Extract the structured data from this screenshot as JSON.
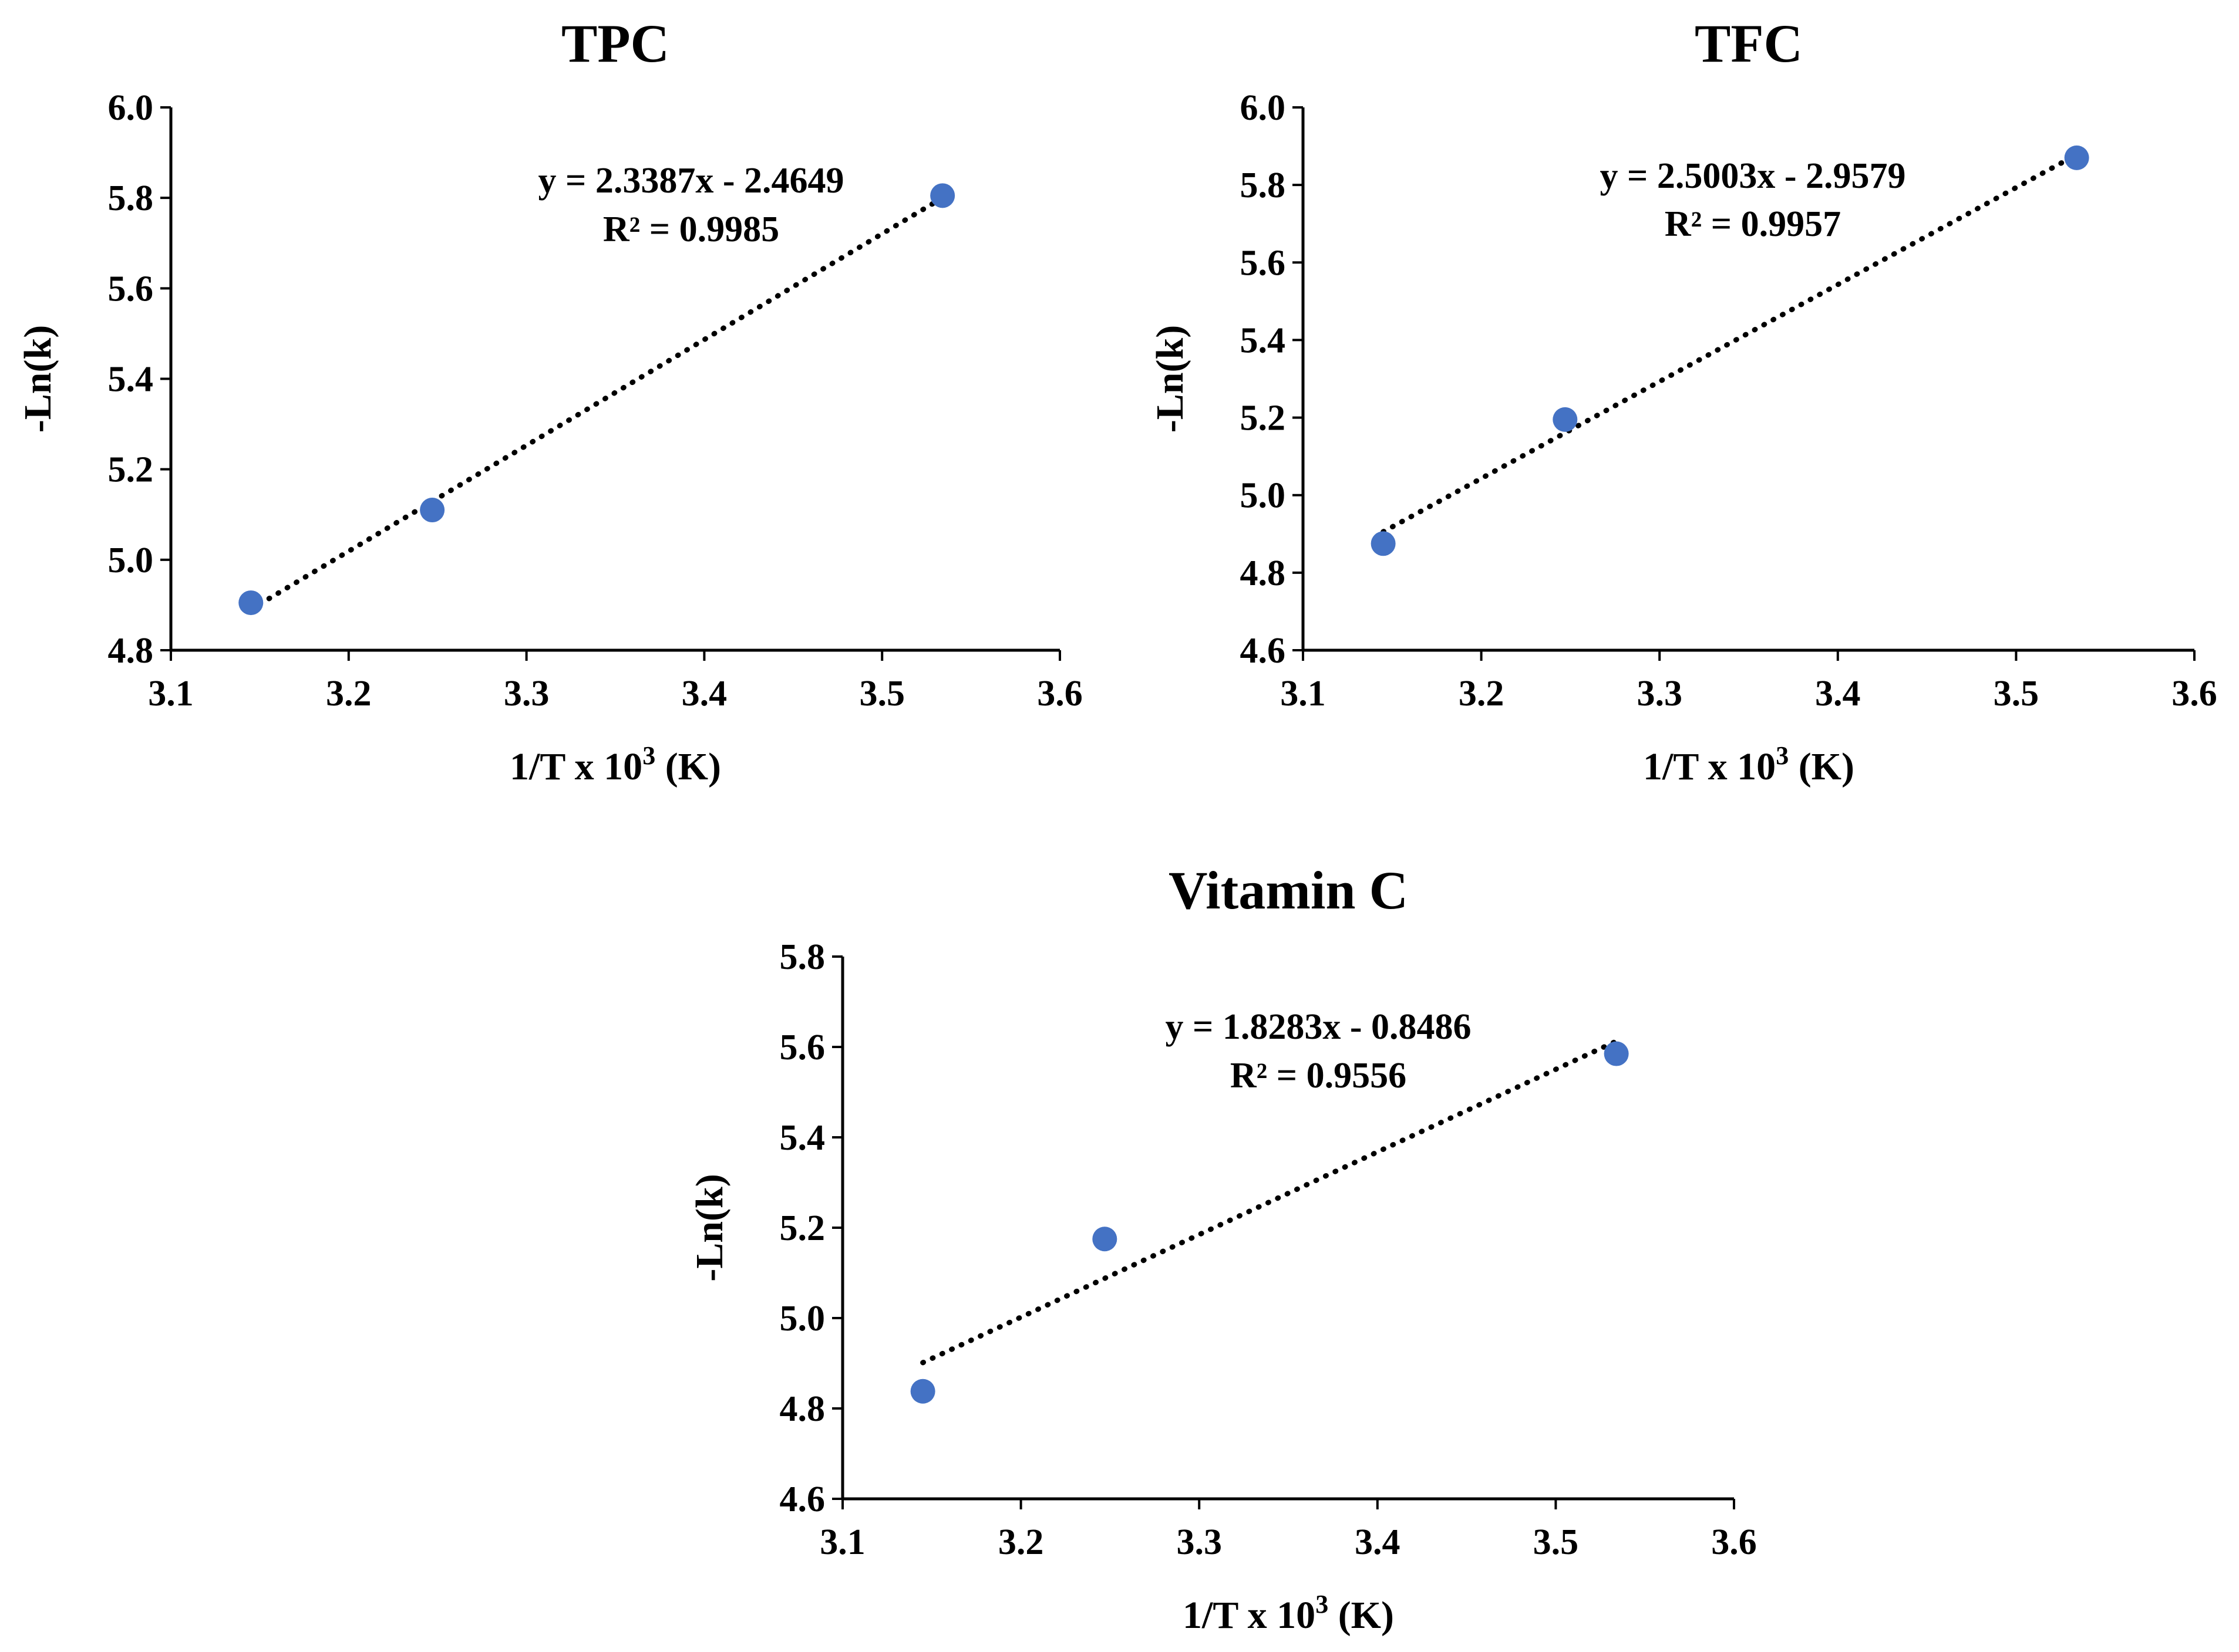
{
  "chart_data": [
    {
      "id": "tpc",
      "type": "scatter",
      "title": "TPC",
      "xlabel": "1/T x 10",
      "xlabel_sup": "3",
      "xlabel_suffix": " (K)",
      "ylabel": "-Ln(k)",
      "xlim": [
        3.1,
        3.6
      ],
      "ylim": [
        4.8,
        6.0
      ],
      "x_ticks": [
        "3.1",
        "3.2",
        "3.3",
        "3.4",
        "3.5",
        "3.6"
      ],
      "y_ticks": [
        "4.8",
        "5.0",
        "5.2",
        "5.4",
        "5.6",
        "5.8",
        "6.0"
      ],
      "points": [
        {
          "x": 3.145,
          "y": 4.905
        },
        {
          "x": 3.247,
          "y": 5.11
        },
        {
          "x": 3.534,
          "y": 5.805
        }
      ],
      "trendline": {
        "type": "linear",
        "slope": 2.3387,
        "intercept": -2.4649,
        "x_range": [
          3.145,
          3.534
        ]
      },
      "equation": "y = 2.3387x - 2.4649",
      "r_squared": "R² = 0.9985",
      "marker_color": "#4472c4",
      "grid": false
    },
    {
      "id": "tfc",
      "type": "scatter",
      "title": "TFC",
      "xlabel": "1/T x 10",
      "xlabel_sup": "3",
      "xlabel_suffix": " (K)",
      "ylabel": "-Ln(k)",
      "xlim": [
        3.1,
        3.6
      ],
      "ylim": [
        4.6,
        6.0
      ],
      "x_ticks": [
        "3.1",
        "3.2",
        "3.3",
        "3.4",
        "3.5",
        "3.6"
      ],
      "y_ticks": [
        "4.6",
        "4.8",
        "5.0",
        "5.2",
        "5.4",
        "5.6",
        "5.8",
        "6.0"
      ],
      "points": [
        {
          "x": 3.145,
          "y": 4.875
        },
        {
          "x": 3.247,
          "y": 5.195
        },
        {
          "x": 3.534,
          "y": 5.87
        }
      ],
      "trendline": {
        "type": "linear",
        "slope": 2.5003,
        "intercept": -2.9579,
        "x_range": [
          3.145,
          3.534
        ]
      },
      "equation": "y = 2.5003x - 2.9579",
      "r_squared": "R² = 0.9957",
      "marker_color": "#4472c4",
      "grid": false
    },
    {
      "id": "vitc",
      "type": "scatter",
      "title": "Vitamin C",
      "xlabel": "1/T x 10",
      "xlabel_sup": "3",
      "xlabel_suffix": " (K)",
      "ylabel": "-Ln(k)",
      "xlim": [
        3.1,
        3.6
      ],
      "ylim": [
        4.6,
        5.8
      ],
      "x_ticks": [
        "3.1",
        "3.2",
        "3.3",
        "3.4",
        "3.5",
        "3.6"
      ],
      "y_ticks": [
        "4.6",
        "4.8",
        "5.0",
        "5.2",
        "5.4",
        "5.6",
        "5.8"
      ],
      "points": [
        {
          "x": 3.145,
          "y": 4.838
        },
        {
          "x": 3.247,
          "y": 5.175
        },
        {
          "x": 3.534,
          "y": 5.585
        }
      ],
      "trendline": {
        "type": "linear",
        "slope": 1.8283,
        "intercept": -0.8486,
        "x_range": [
          3.145,
          3.534
        ]
      },
      "equation": "y = 1.8283x - 0.8486",
      "r_squared": "R² = 0.9556",
      "marker_color": "#4472c4",
      "grid": false
    }
  ]
}
